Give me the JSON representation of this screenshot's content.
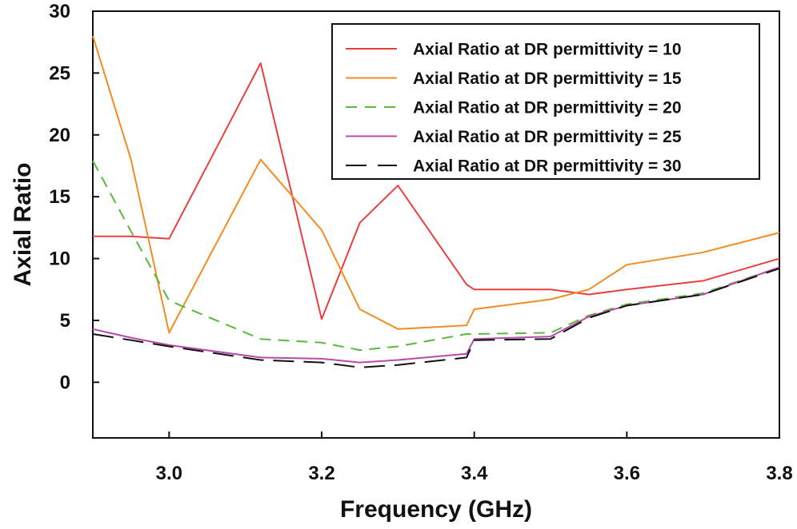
{
  "chart_data": {
    "type": "line",
    "title": "",
    "xlabel": "Frequency (GHz)",
    "ylabel": "Axial Ratio",
    "xlim": [
      2.9,
      3.8
    ],
    "ylim": [
      -4.5,
      30
    ],
    "xticks": [
      "3.0",
      "3.2",
      "3.4",
      "3.6",
      "3.8"
    ],
    "xtick_values": [
      3.0,
      3.2,
      3.4,
      3.6,
      3.8
    ],
    "yticks": [
      "0",
      "5",
      "10",
      "15",
      "20",
      "25",
      "30"
    ],
    "ytick_values": [
      0,
      5,
      10,
      15,
      20,
      25,
      30
    ],
    "grid": false,
    "legend_position": "top-right",
    "series": [
      {
        "name": "Axial Ratio at DR permittivity = 10",
        "color": "#e8403f",
        "dash": "solid",
        "points": [
          [
            2.9,
            11.8
          ],
          [
            2.95,
            11.8
          ],
          [
            3.0,
            11.6
          ],
          [
            3.12,
            25.8
          ],
          [
            3.2,
            5.1
          ],
          [
            3.25,
            12.9
          ],
          [
            3.3,
            15.9
          ],
          [
            3.39,
            7.9
          ],
          [
            3.4,
            7.5
          ],
          [
            3.5,
            7.5
          ],
          [
            3.55,
            7.1
          ],
          [
            3.6,
            7.5
          ],
          [
            3.7,
            8.2
          ],
          [
            3.8,
            10.0
          ]
        ]
      },
      {
        "name": "Axial Ratio at DR permittivity = 15",
        "color": "#f08c22",
        "dash": "solid",
        "points": [
          [
            2.9,
            28.0
          ],
          [
            2.95,
            18.0
          ],
          [
            3.0,
            4.0
          ],
          [
            3.12,
            18.0
          ],
          [
            3.2,
            12.3
          ],
          [
            3.25,
            5.9
          ],
          [
            3.3,
            4.3
          ],
          [
            3.39,
            4.6
          ],
          [
            3.4,
            5.9
          ],
          [
            3.5,
            6.7
          ],
          [
            3.55,
            7.5
          ],
          [
            3.6,
            9.5
          ],
          [
            3.7,
            10.5
          ],
          [
            3.8,
            12.1
          ]
        ]
      },
      {
        "name": "Axial Ratio at DR permittivity = 20",
        "color": "#5cb83e",
        "dash": "dashed",
        "points": [
          [
            2.9,
            17.9
          ],
          [
            2.95,
            12.2
          ],
          [
            3.0,
            6.6
          ],
          [
            3.12,
            3.5
          ],
          [
            3.2,
            3.2
          ],
          [
            3.25,
            2.6
          ],
          [
            3.3,
            2.9
          ],
          [
            3.39,
            3.9
          ],
          [
            3.4,
            3.9
          ],
          [
            3.5,
            4.0
          ],
          [
            3.55,
            5.4
          ],
          [
            3.6,
            6.3
          ],
          [
            3.7,
            7.2
          ],
          [
            3.8,
            9.3
          ]
        ]
      },
      {
        "name": "Axial Ratio at DR permittivity = 25",
        "color": "#b84aaa",
        "dash": "solid",
        "points": [
          [
            2.9,
            4.3
          ],
          [
            2.95,
            3.6
          ],
          [
            3.0,
            3.0
          ],
          [
            3.12,
            2.0
          ],
          [
            3.2,
            1.9
          ],
          [
            3.25,
            1.6
          ],
          [
            3.3,
            1.8
          ],
          [
            3.39,
            2.3
          ],
          [
            3.4,
            3.5
          ],
          [
            3.5,
            3.7
          ],
          [
            3.55,
            5.3
          ],
          [
            3.6,
            6.2
          ],
          [
            3.7,
            7.1
          ],
          [
            3.8,
            9.3
          ]
        ]
      },
      {
        "name": "Axial Ratio at DR permittivity = 30",
        "color": "#111111",
        "dash": "longdash",
        "points": [
          [
            2.9,
            3.9
          ],
          [
            2.95,
            3.4
          ],
          [
            3.0,
            2.9
          ],
          [
            3.12,
            1.8
          ],
          [
            3.2,
            1.6
          ],
          [
            3.25,
            1.2
          ],
          [
            3.3,
            1.4
          ],
          [
            3.39,
            2.0
          ],
          [
            3.4,
            3.4
          ],
          [
            3.5,
            3.5
          ],
          [
            3.55,
            5.2
          ],
          [
            3.6,
            6.2
          ],
          [
            3.7,
            7.1
          ],
          [
            3.8,
            9.2
          ]
        ]
      }
    ]
  }
}
